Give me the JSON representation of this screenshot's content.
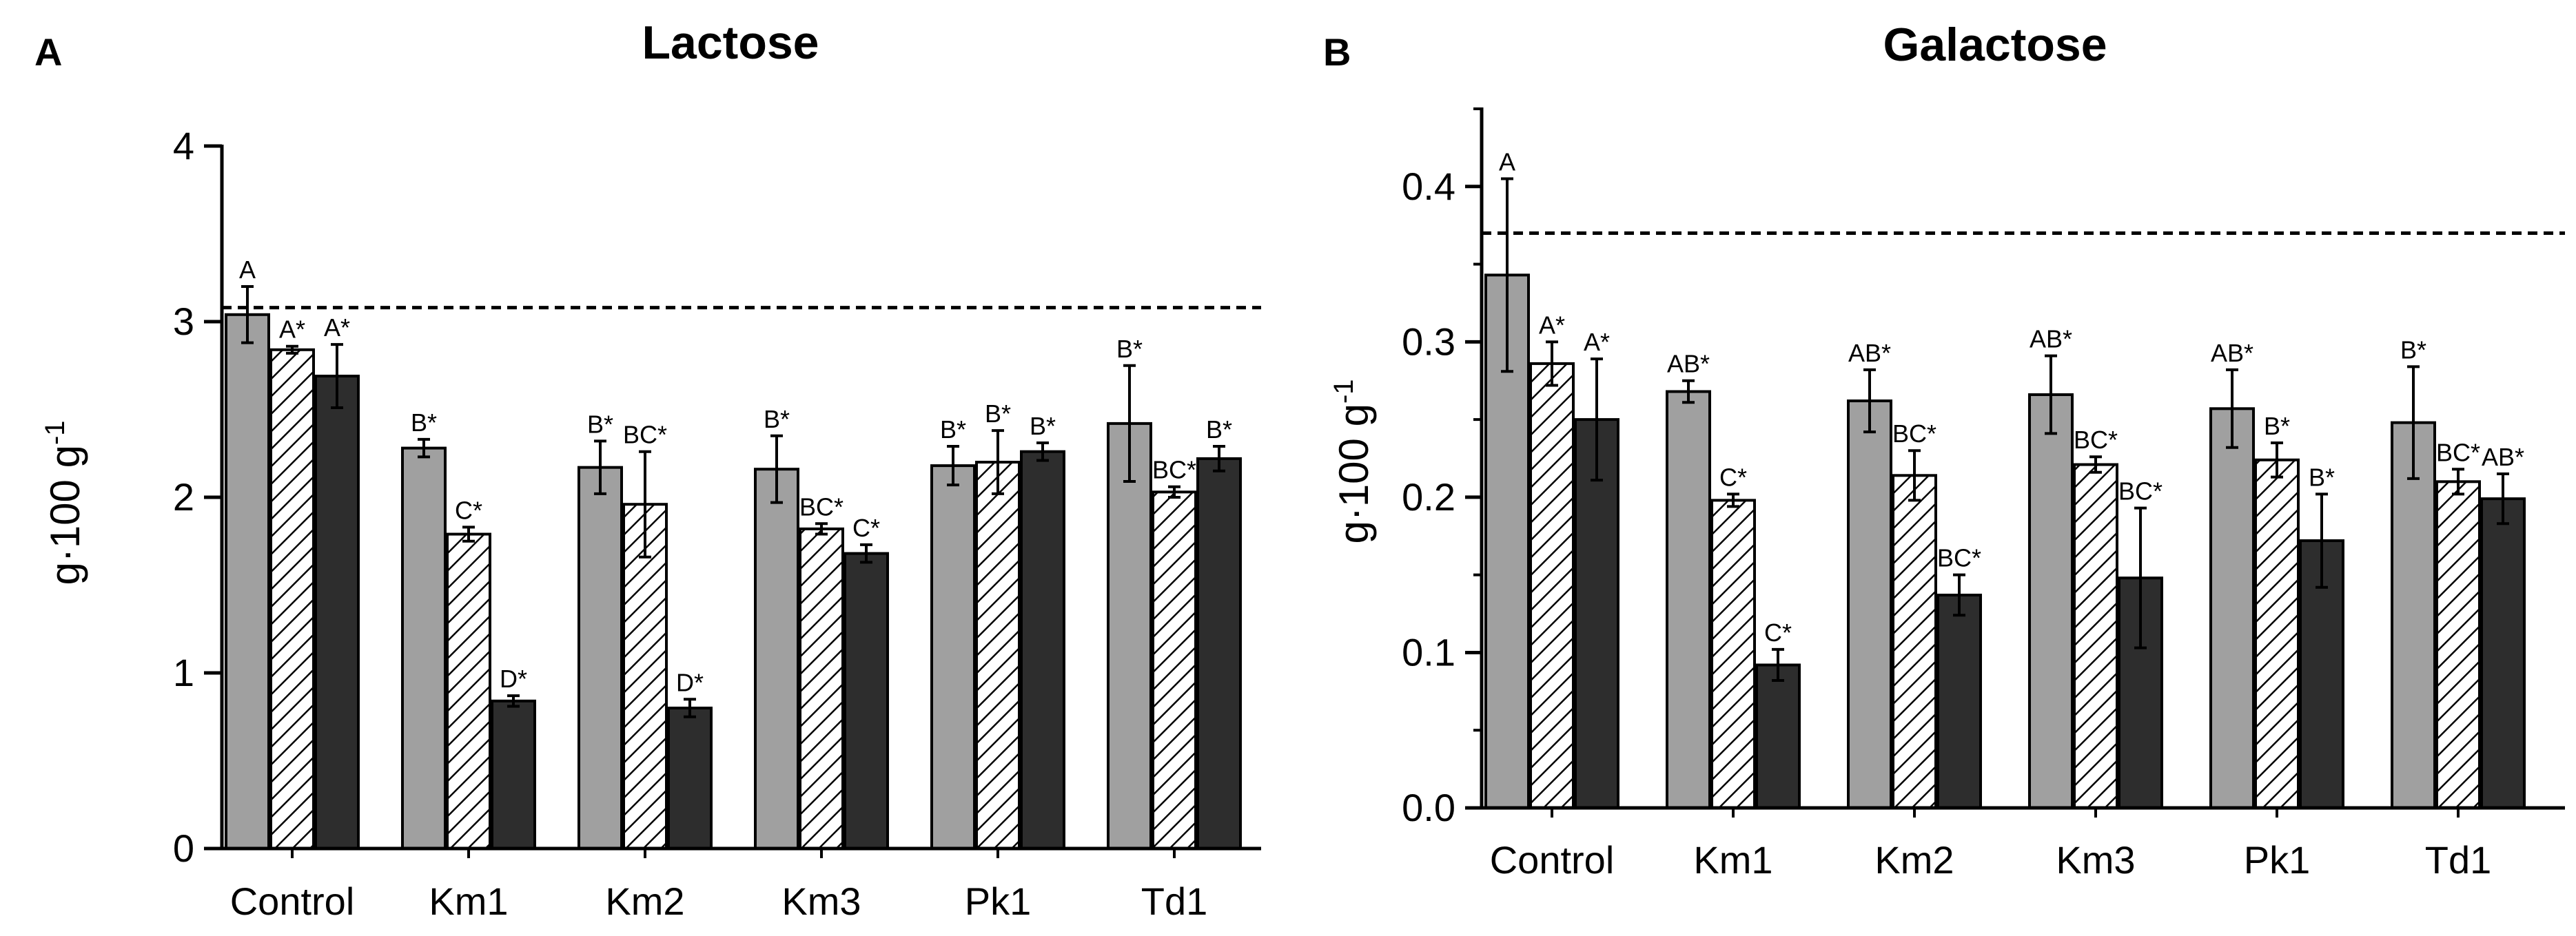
{
  "figure": {
    "panel_a_letter": "A",
    "panel_b_letter": "B"
  },
  "chart_data": [
    {
      "type": "bar",
      "title": "Lactose",
      "xlabel": "",
      "ylabel": "g·100 g-1",
      "ylabel_main": "g·100 g",
      "ylabel_sup": "-1",
      "ylim": [
        0,
        4
      ],
      "yticks": [
        "0",
        "1",
        "2",
        "3",
        "4"
      ],
      "reference_line": 3.08,
      "categories": [
        "Control",
        "Km1",
        "Km2",
        "Km3",
        "Pk1",
        "Td1"
      ],
      "series": [
        {
          "fill": "grey",
          "color": "#a0a0a0",
          "values": [
            3.04,
            2.28,
            2.17,
            2.16,
            2.18,
            2.42
          ],
          "errors": [
            0.16,
            0.05,
            0.15,
            0.19,
            0.11,
            0.33
          ],
          "labels": [
            "A",
            "B*",
            "B*",
            "B*",
            "B*",
            "B*"
          ]
        },
        {
          "fill": "hatched",
          "color": "#ffffff",
          "values": [
            2.84,
            1.79,
            1.96,
            1.82,
            2.2,
            2.03
          ],
          "errors": [
            0.02,
            0.04,
            0.3,
            0.03,
            0.18,
            0.03
          ],
          "labels": [
            "A*",
            "C*",
            "BC*",
            "BC*",
            "B*",
            "BC*"
          ]
        },
        {
          "fill": "dark",
          "color": "#2d2d2d",
          "values": [
            2.69,
            0.84,
            0.8,
            1.68,
            2.26,
            2.22
          ],
          "errors": [
            0.18,
            0.03,
            0.05,
            0.05,
            0.05,
            0.07
          ],
          "labels": [
            "A*",
            "D*",
            "D*",
            "C*",
            "B*",
            "B*"
          ]
        }
      ]
    },
    {
      "type": "bar",
      "title": "Galactose",
      "xlabel": "",
      "ylabel": "g·100 g-1",
      "ylabel_main": "g·100 g",
      "ylabel_sup": "-1",
      "ylim": [
        0,
        0.45
      ],
      "yticks": [
        "0.0",
        "0.1",
        "0.2",
        "0.3",
        "0.4"
      ],
      "reference_line": 0.37,
      "categories": [
        "Control",
        "Km1",
        "Km2",
        "Km3",
        "Pk1",
        "Td1"
      ],
      "series": [
        {
          "fill": "grey",
          "color": "#a0a0a0",
          "values": [
            0.343,
            0.268,
            0.262,
            0.266,
            0.257,
            0.248
          ],
          "errors": [
            0.062,
            0.007,
            0.02,
            0.025,
            0.025,
            0.036
          ],
          "labels": [
            "A",
            "AB*",
            "AB*",
            "AB*",
            "AB*",
            "B*"
          ]
        },
        {
          "fill": "hatched",
          "color": "#ffffff",
          "values": [
            0.286,
            0.198,
            0.214,
            0.221,
            0.224,
            0.21
          ],
          "errors": [
            0.014,
            0.004,
            0.016,
            0.005,
            0.011,
            0.008
          ],
          "labels": [
            "A*",
            "C*",
            "BC*",
            "BC*",
            "B*",
            "BC*"
          ]
        },
        {
          "fill": "dark",
          "color": "#2d2d2d",
          "values": [
            0.25,
            0.092,
            0.137,
            0.148,
            0.172,
            0.199
          ],
          "errors": [
            0.039,
            0.01,
            0.013,
            0.045,
            0.03,
            0.016
          ],
          "labels": [
            "A*",
            "C*",
            "BC*",
            "BC*",
            "B*",
            "AB*"
          ]
        }
      ]
    }
  ]
}
